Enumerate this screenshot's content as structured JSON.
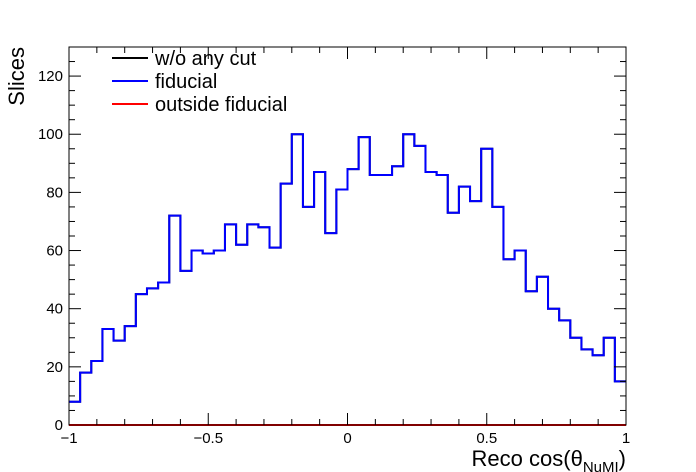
{
  "chart_data": {
    "type": "step-histogram",
    "xlabel": "Reco cos(θ",
    "xlabel_sub": "NuMI",
    "xlabel_close": ")",
    "ylabel": "Slices",
    "xlim": [
      -1,
      1
    ],
    "ylim": [
      0,
      130
    ],
    "x_ticks": [
      -1,
      -0.5,
      0,
      0.5,
      1
    ],
    "x_tick_labels": [
      "−1",
      "−0.5",
      "0",
      "0.5",
      "1"
    ],
    "y_ticks": [
      0,
      20,
      40,
      60,
      80,
      100,
      120
    ],
    "y_tick_labels": [
      "0",
      "20",
      "40",
      "60",
      "80",
      "100",
      "120"
    ],
    "grid": false,
    "legend_position": "top-left",
    "bin_edges_range": [
      -1,
      1
    ],
    "bin_count": 50,
    "series": [
      {
        "name": "w/o any cut",
        "color": "#000000",
        "values": [
          8,
          18,
          22,
          33,
          29,
          34,
          45,
          47,
          49,
          72,
          53,
          60,
          59,
          60,
          69,
          62,
          69,
          68,
          61,
          83,
          100,
          75,
          87,
          66,
          81,
          88,
          99,
          86,
          86,
          89,
          100,
          96,
          87,
          86,
          73,
          82,
          77,
          95,
          75,
          57,
          60,
          46,
          51,
          40,
          36,
          30,
          26,
          24,
          30,
          15
        ]
      },
      {
        "name": "fiducial",
        "color": "#0000ff",
        "values": [
          8,
          18,
          22,
          33,
          29,
          34,
          45,
          47,
          49,
          72,
          53,
          60,
          59,
          60,
          69,
          62,
          69,
          68,
          61,
          83,
          100,
          75,
          87,
          66,
          81,
          88,
          99,
          86,
          86,
          89,
          100,
          96,
          87,
          86,
          73,
          82,
          77,
          95,
          75,
          57,
          60,
          46,
          51,
          40,
          36,
          30,
          26,
          24,
          30,
          15
        ]
      },
      {
        "name": "outside fiducial",
        "color": "#ff0000",
        "values": [
          0,
          0,
          0,
          0,
          0,
          0,
          0,
          0,
          0,
          0,
          0,
          0,
          0,
          0,
          0,
          0,
          0,
          0,
          0,
          0,
          0,
          0,
          0,
          0,
          0,
          0,
          0,
          0,
          0,
          0,
          0,
          0,
          0,
          0,
          0,
          0,
          0,
          0,
          0,
          0,
          0,
          0,
          0,
          0,
          0,
          0,
          0,
          0,
          0,
          0
        ]
      }
    ]
  }
}
